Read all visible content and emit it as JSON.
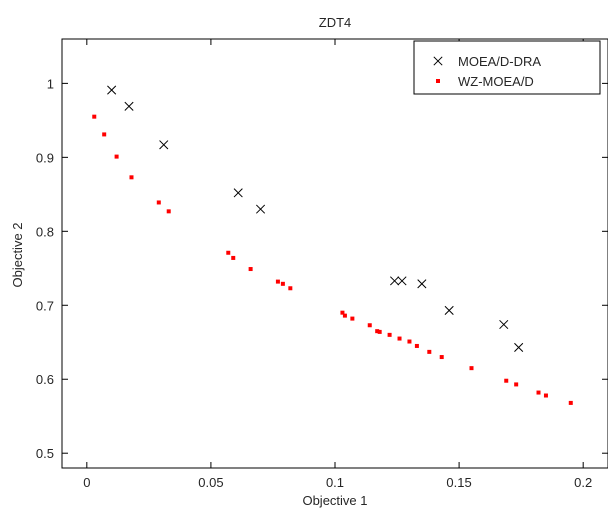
{
  "chart_data": {
    "type": "scatter",
    "title": "ZDT4",
    "xlabel": "Objective 1",
    "ylabel": "Objective 2",
    "xlim": [
      -0.01,
      0.21
    ],
    "ylim": [
      0.48,
      1.06
    ],
    "xticks": [
      0,
      0.05,
      0.1,
      0.15,
      0.2
    ],
    "xtick_labels": [
      "0",
      "0.05",
      "0.1",
      "0.15",
      "0.2"
    ],
    "yticks": [
      0.5,
      0.6,
      0.7,
      0.8,
      0.9,
      1.0
    ],
    "ytick_labels": [
      "0.5",
      "0.6",
      "0.7",
      "0.8",
      "0.9",
      "1"
    ],
    "grid": false,
    "legend_position": "top-right",
    "series": [
      {
        "name": "MOEA/D-DRA",
        "marker": "x",
        "color": "#000000",
        "points": [
          [
            0.01,
            0.991
          ],
          [
            0.017,
            0.969
          ],
          [
            0.031,
            0.917
          ],
          [
            0.061,
            0.852
          ],
          [
            0.07,
            0.83
          ],
          [
            0.124,
            0.733
          ],
          [
            0.127,
            0.733
          ],
          [
            0.135,
            0.729
          ],
          [
            0.146,
            0.693
          ],
          [
            0.168,
            0.674
          ],
          [
            0.174,
            0.643
          ]
        ]
      },
      {
        "name": "WZ-MOEA/D",
        "marker": "dot",
        "color": "#ff0000",
        "points": [
          [
            0.003,
            0.955
          ],
          [
            0.007,
            0.931
          ],
          [
            0.012,
            0.901
          ],
          [
            0.018,
            0.873
          ],
          [
            0.029,
            0.839
          ],
          [
            0.033,
            0.827
          ],
          [
            0.057,
            0.771
          ],
          [
            0.059,
            0.764
          ],
          [
            0.066,
            0.749
          ],
          [
            0.077,
            0.732
          ],
          [
            0.079,
            0.729
          ],
          [
            0.082,
            0.723
          ],
          [
            0.103,
            0.69
          ],
          [
            0.104,
            0.686
          ],
          [
            0.107,
            0.682
          ],
          [
            0.114,
            0.673
          ],
          [
            0.117,
            0.665
          ],
          [
            0.118,
            0.664
          ],
          [
            0.122,
            0.66
          ],
          [
            0.126,
            0.655
          ],
          [
            0.13,
            0.651
          ],
          [
            0.133,
            0.645
          ],
          [
            0.138,
            0.637
          ],
          [
            0.143,
            0.63
          ],
          [
            0.155,
            0.615
          ],
          [
            0.169,
            0.598
          ],
          [
            0.173,
            0.593
          ],
          [
            0.182,
            0.582
          ],
          [
            0.185,
            0.578
          ],
          [
            0.195,
            0.568
          ]
        ]
      }
    ]
  }
}
